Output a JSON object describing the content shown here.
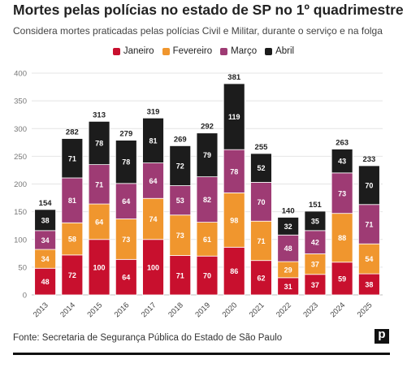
{
  "header": {
    "title": "Mortes pelas polícias no estado de SP no 1º quadrimestre",
    "subtitle": "Considera mortes praticadas pelas polícias Civil e Militar, durante o serviço e na folga"
  },
  "footer": {
    "source": "Fonte: Secretaria de Segurança Pública do Estado de São Paulo",
    "logo_text": "p"
  },
  "chart_data": {
    "type": "bar",
    "stacked": true,
    "categories": [
      "2013",
      "2014",
      "2015",
      "2016",
      "2017",
      "2018",
      "2019",
      "2020",
      "2021",
      "2022",
      "2023",
      "2024",
      "2025"
    ],
    "series": [
      {
        "name": "Janeiro",
        "color": "#c8102e",
        "values": [
          48,
          72,
          100,
          64,
          100,
          71,
          70,
          86,
          62,
          31,
          37,
          59,
          38
        ]
      },
      {
        "name": "Fevereiro",
        "color": "#f0962e",
        "values": [
          34,
          58,
          64,
          73,
          74,
          73,
          61,
          98,
          71,
          29,
          37,
          88,
          54
        ]
      },
      {
        "name": "Março",
        "color": "#9e3b74",
        "values": [
          34,
          81,
          71,
          64,
          64,
          53,
          82,
          78,
          70,
          48,
          42,
          73,
          71
        ]
      },
      {
        "name": "Abril",
        "color": "#1c1c1c",
        "values": [
          38,
          71,
          78,
          78,
          81,
          72,
          79,
          119,
          52,
          32,
          35,
          43,
          70
        ]
      }
    ],
    "totals": [
      154,
      282,
      313,
      279,
      319,
      269,
      292,
      381,
      255,
      140,
      151,
      263,
      233
    ],
    "ylim": [
      0,
      400
    ],
    "yticks": [
      0,
      50,
      100,
      150,
      200,
      250,
      300,
      350,
      400
    ],
    "grid": true,
    "legend_position": "top-center"
  }
}
